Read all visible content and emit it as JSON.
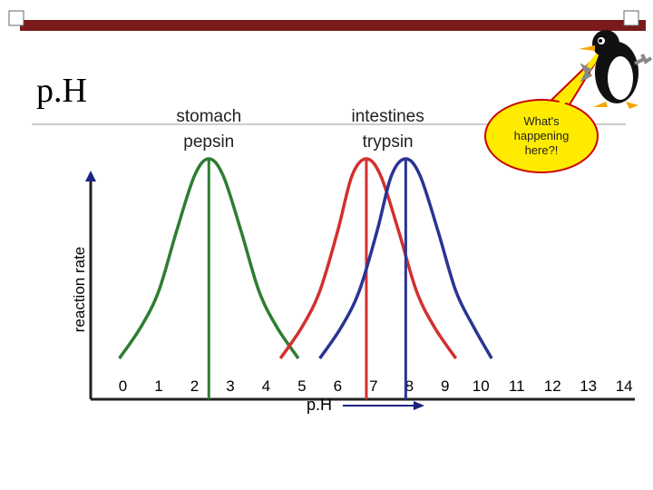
{
  "slide": {
    "title": "p.H",
    "bubble": [
      "What's",
      "happening",
      "here?!"
    ]
  },
  "chart_data": {
    "type": "line",
    "xlabel": "p.H",
    "ylabel": "reaction rate",
    "labels": [
      {
        "lines": [
          "stomach",
          "pepsin"
        ],
        "x": 2.4
      },
      {
        "lines": [
          "intestines",
          "trypsin"
        ],
        "x": 7.4
      }
    ],
    "xlim": [
      -0.9,
      14.3
    ],
    "xticks": [
      0,
      1,
      2,
      3,
      4,
      5,
      6,
      7,
      8,
      9,
      10,
      11,
      12,
      13,
      14
    ],
    "ylim": [
      0,
      1
    ],
    "grid": false,
    "series": [
      {
        "color": "#2e7d32",
        "optimum": 2.4,
        "x": [
          -0.1,
          0.5,
          1,
          1.5,
          2,
          2.4,
          2.8,
          3.3,
          3.8,
          4.3,
          4.9
        ],
        "values": [
          0.17,
          0.3,
          0.45,
          0.7,
          0.93,
          1,
          0.93,
          0.7,
          0.45,
          0.3,
          0.17
        ]
      },
      {
        "color": "#d32f2f",
        "optimum": 6.8,
        "x": [
          4.4,
          5,
          5.5,
          6,
          6.4,
          6.8,
          7.2,
          7.7,
          8.2,
          8.7,
          9.3
        ],
        "values": [
          0.17,
          0.3,
          0.45,
          0.7,
          0.93,
          1,
          0.93,
          0.7,
          0.45,
          0.3,
          0.17
        ]
      },
      {
        "color": "#283593",
        "optimum": 7.9,
        "x": [
          5.5,
          6.1,
          6.6,
          7.1,
          7.5,
          7.9,
          8.3,
          8.8,
          9.3,
          9.8,
          10.3
        ],
        "values": [
          0.17,
          0.3,
          0.45,
          0.7,
          0.93,
          1,
          0.93,
          0.7,
          0.45,
          0.3,
          0.17
        ]
      }
    ]
  }
}
